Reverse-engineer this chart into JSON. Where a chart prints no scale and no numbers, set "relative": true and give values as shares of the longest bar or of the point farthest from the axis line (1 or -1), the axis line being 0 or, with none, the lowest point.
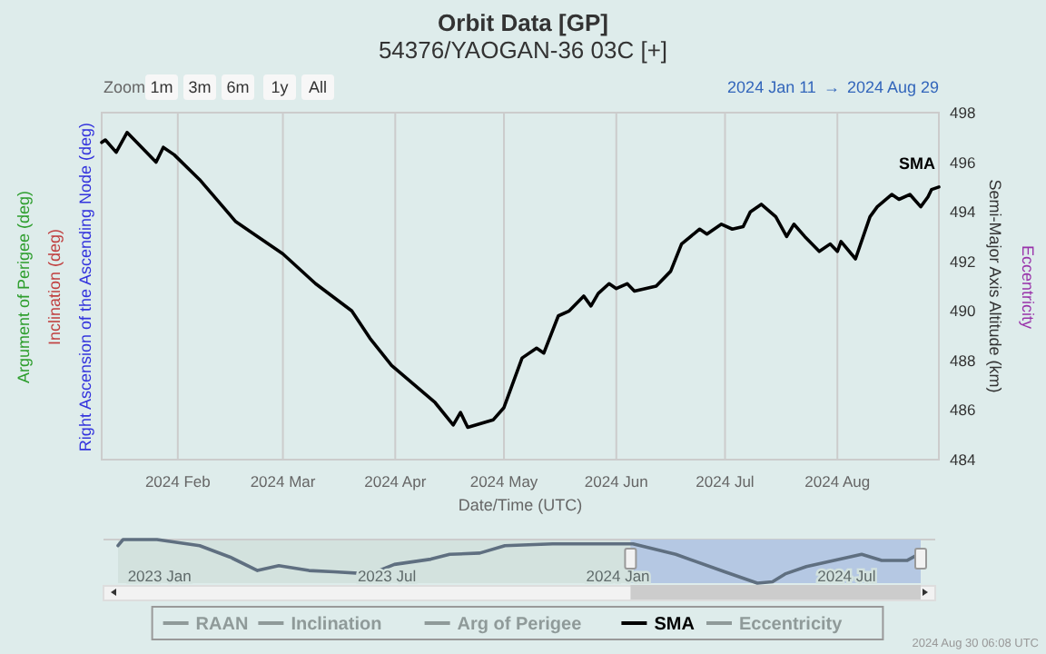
{
  "chart_data": [
    {
      "type": "line",
      "title": "Orbit Data [GP]",
      "subtitle": "54376/YAOGAN-36 03C [+]",
      "xlabel": "Date/Time (UTC)",
      "ylabel": "Semi-Major Axis Altitude (km)",
      "xlim": [
        "2024-01-11",
        "2024-08-29"
      ],
      "xticks": [
        {
          "value": "2024-02-01",
          "label": "2024 Feb"
        },
        {
          "value": "2024-03-01",
          "label": "2024 Mar"
        },
        {
          "value": "2024-04-01",
          "label": "2024 Apr"
        },
        {
          "value": "2024-05-01",
          "label": "2024 May"
        },
        {
          "value": "2024-06-01",
          "label": "2024 Jun"
        },
        {
          "value": "2024-07-01",
          "label": "2024 Jul"
        },
        {
          "value": "2024-08-01",
          "label": "2024 Aug"
        }
      ],
      "ylim": [
        484,
        498
      ],
      "yticks": [
        484,
        486,
        488,
        490,
        492,
        494,
        496,
        498
      ],
      "grid": "x",
      "legend": "bottom",
      "annotations": [
        "Zoom",
        "1m",
        "3m",
        "6m",
        "1y",
        "All",
        "2024 Jan 11",
        "→",
        "2024 Aug 29",
        "Right Ascension of the Ascending Node (deg)",
        "Inclination (deg)",
        "Argument of Perigee (deg)",
        "Eccentricity",
        "2024 Aug 30 06:08 UTC"
      ],
      "series": [
        {
          "name": "RAAN",
          "color": "#8f9a99"
        },
        {
          "name": "Inclination",
          "color": "#8f9a99"
        },
        {
          "name": "Arg of Perigee",
          "color": "#8f9a99"
        },
        {
          "name": "SMA",
          "color": "#000000",
          "x": [
            "2024-01-11",
            "2024-01-12",
            "2024-01-15",
            "2024-01-18",
            "2024-01-26",
            "2024-01-28",
            "2024-01-31",
            "2024-02-07",
            "2024-02-17",
            "2024-03-01",
            "2024-03-10",
            "2024-03-20",
            "2024-03-25",
            "2024-03-31",
            "2024-04-12",
            "2024-04-17",
            "2024-04-19",
            "2024-04-21",
            "2024-04-28",
            "2024-05-01",
            "2024-05-06",
            "2024-05-10",
            "2024-05-12",
            "2024-05-16",
            "2024-05-19",
            "2024-05-23",
            "2024-05-25",
            "2024-05-27",
            "2024-05-30",
            "2024-06-01",
            "2024-06-04",
            "2024-06-06",
            "2024-06-12",
            "2024-06-16",
            "2024-06-19",
            "2024-06-24",
            "2024-06-26",
            "2024-06-30",
            "2024-07-03",
            "2024-07-06",
            "2024-07-08",
            "2024-07-11",
            "2024-07-15",
            "2024-07-18",
            "2024-07-20",
            "2024-07-23",
            "2024-07-27",
            "2024-07-30",
            "2024-08-01",
            "2024-08-02",
            "2024-08-06",
            "2024-08-10",
            "2024-08-12",
            "2024-08-16",
            "2024-08-18",
            "2024-08-21",
            "2024-08-24",
            "2024-08-26",
            "2024-08-27",
            "2024-08-29"
          ],
          "values": [
            496.8,
            496.9,
            496.4,
            497.2,
            496.0,
            496.6,
            496.3,
            495.3,
            493.6,
            492.3,
            491.1,
            490.0,
            488.9,
            487.8,
            486.3,
            485.4,
            485.9,
            485.3,
            485.6,
            486.1,
            488.1,
            488.5,
            488.3,
            489.8,
            490.0,
            490.6,
            490.2,
            490.7,
            491.1,
            490.9,
            491.1,
            490.8,
            491.0,
            491.6,
            492.7,
            493.3,
            493.1,
            493.5,
            493.3,
            493.4,
            494.0,
            494.3,
            493.8,
            493.0,
            493.5,
            493.0,
            492.4,
            492.7,
            492.4,
            492.8,
            492.1,
            493.8,
            494.2,
            494.7,
            494.5,
            494.7,
            494.2,
            494.6,
            494.9,
            495.0
          ]
        },
        {
          "name": "Eccentricity",
          "color": "#8f9a99"
        }
      ]
    },
    {
      "type": "line",
      "relative": true,
      "tick_labels": "x",
      "xlim": [
        "2022-11-29",
        "2024-08-29"
      ],
      "xticks": [
        {
          "value": "2023-01-01",
          "label": "2023 Jan"
        },
        {
          "value": "2023-07-01",
          "label": "2023 Jul"
        },
        {
          "value": "2024-01-01",
          "label": "2024 Jan"
        },
        {
          "value": "2024-07-01",
          "label": "2024 Jul"
        }
      ],
      "bands": [
        {
          "axis": "x",
          "from": "2024-01-11",
          "to": "2024-08-29",
          "color": "#b5c8e3"
        }
      ],
      "series": [
        {
          "color": "#5f6f80",
          "x": [
            "2022-11-29",
            "2022-12-03",
            "2022-12-30",
            "2023-02-02",
            "2023-02-26",
            "2023-03-20",
            "2023-04-06",
            "2023-04-30",
            "2023-05-20",
            "2023-06-18",
            "2023-07-07",
            "2023-08-05",
            "2023-08-20",
            "2023-09-13",
            "2023-10-03",
            "2023-11-10",
            "2023-12-10",
            "2024-01-13",
            "2024-02-16",
            "2024-03-26",
            "2024-04-21",
            "2024-05-03",
            "2024-05-13",
            "2024-05-30",
            "2024-06-21",
            "2024-07-13",
            "2024-07-29",
            "2024-08-18",
            "2024-08-29"
          ],
          "values": [
            0.86,
            1,
            1,
            0.86,
            0.6,
            0.29,
            0.4,
            0.29,
            0.26,
            0.21,
            0.43,
            0.55,
            0.66,
            0.69,
            0.86,
            0.9,
            0.9,
            0.9,
            0.66,
            0.26,
            0,
            0.03,
            0.21,
            0.38,
            0.52,
            0.66,
            0.52,
            0.52,
            0.69
          ]
        }
      ]
    }
  ]
}
